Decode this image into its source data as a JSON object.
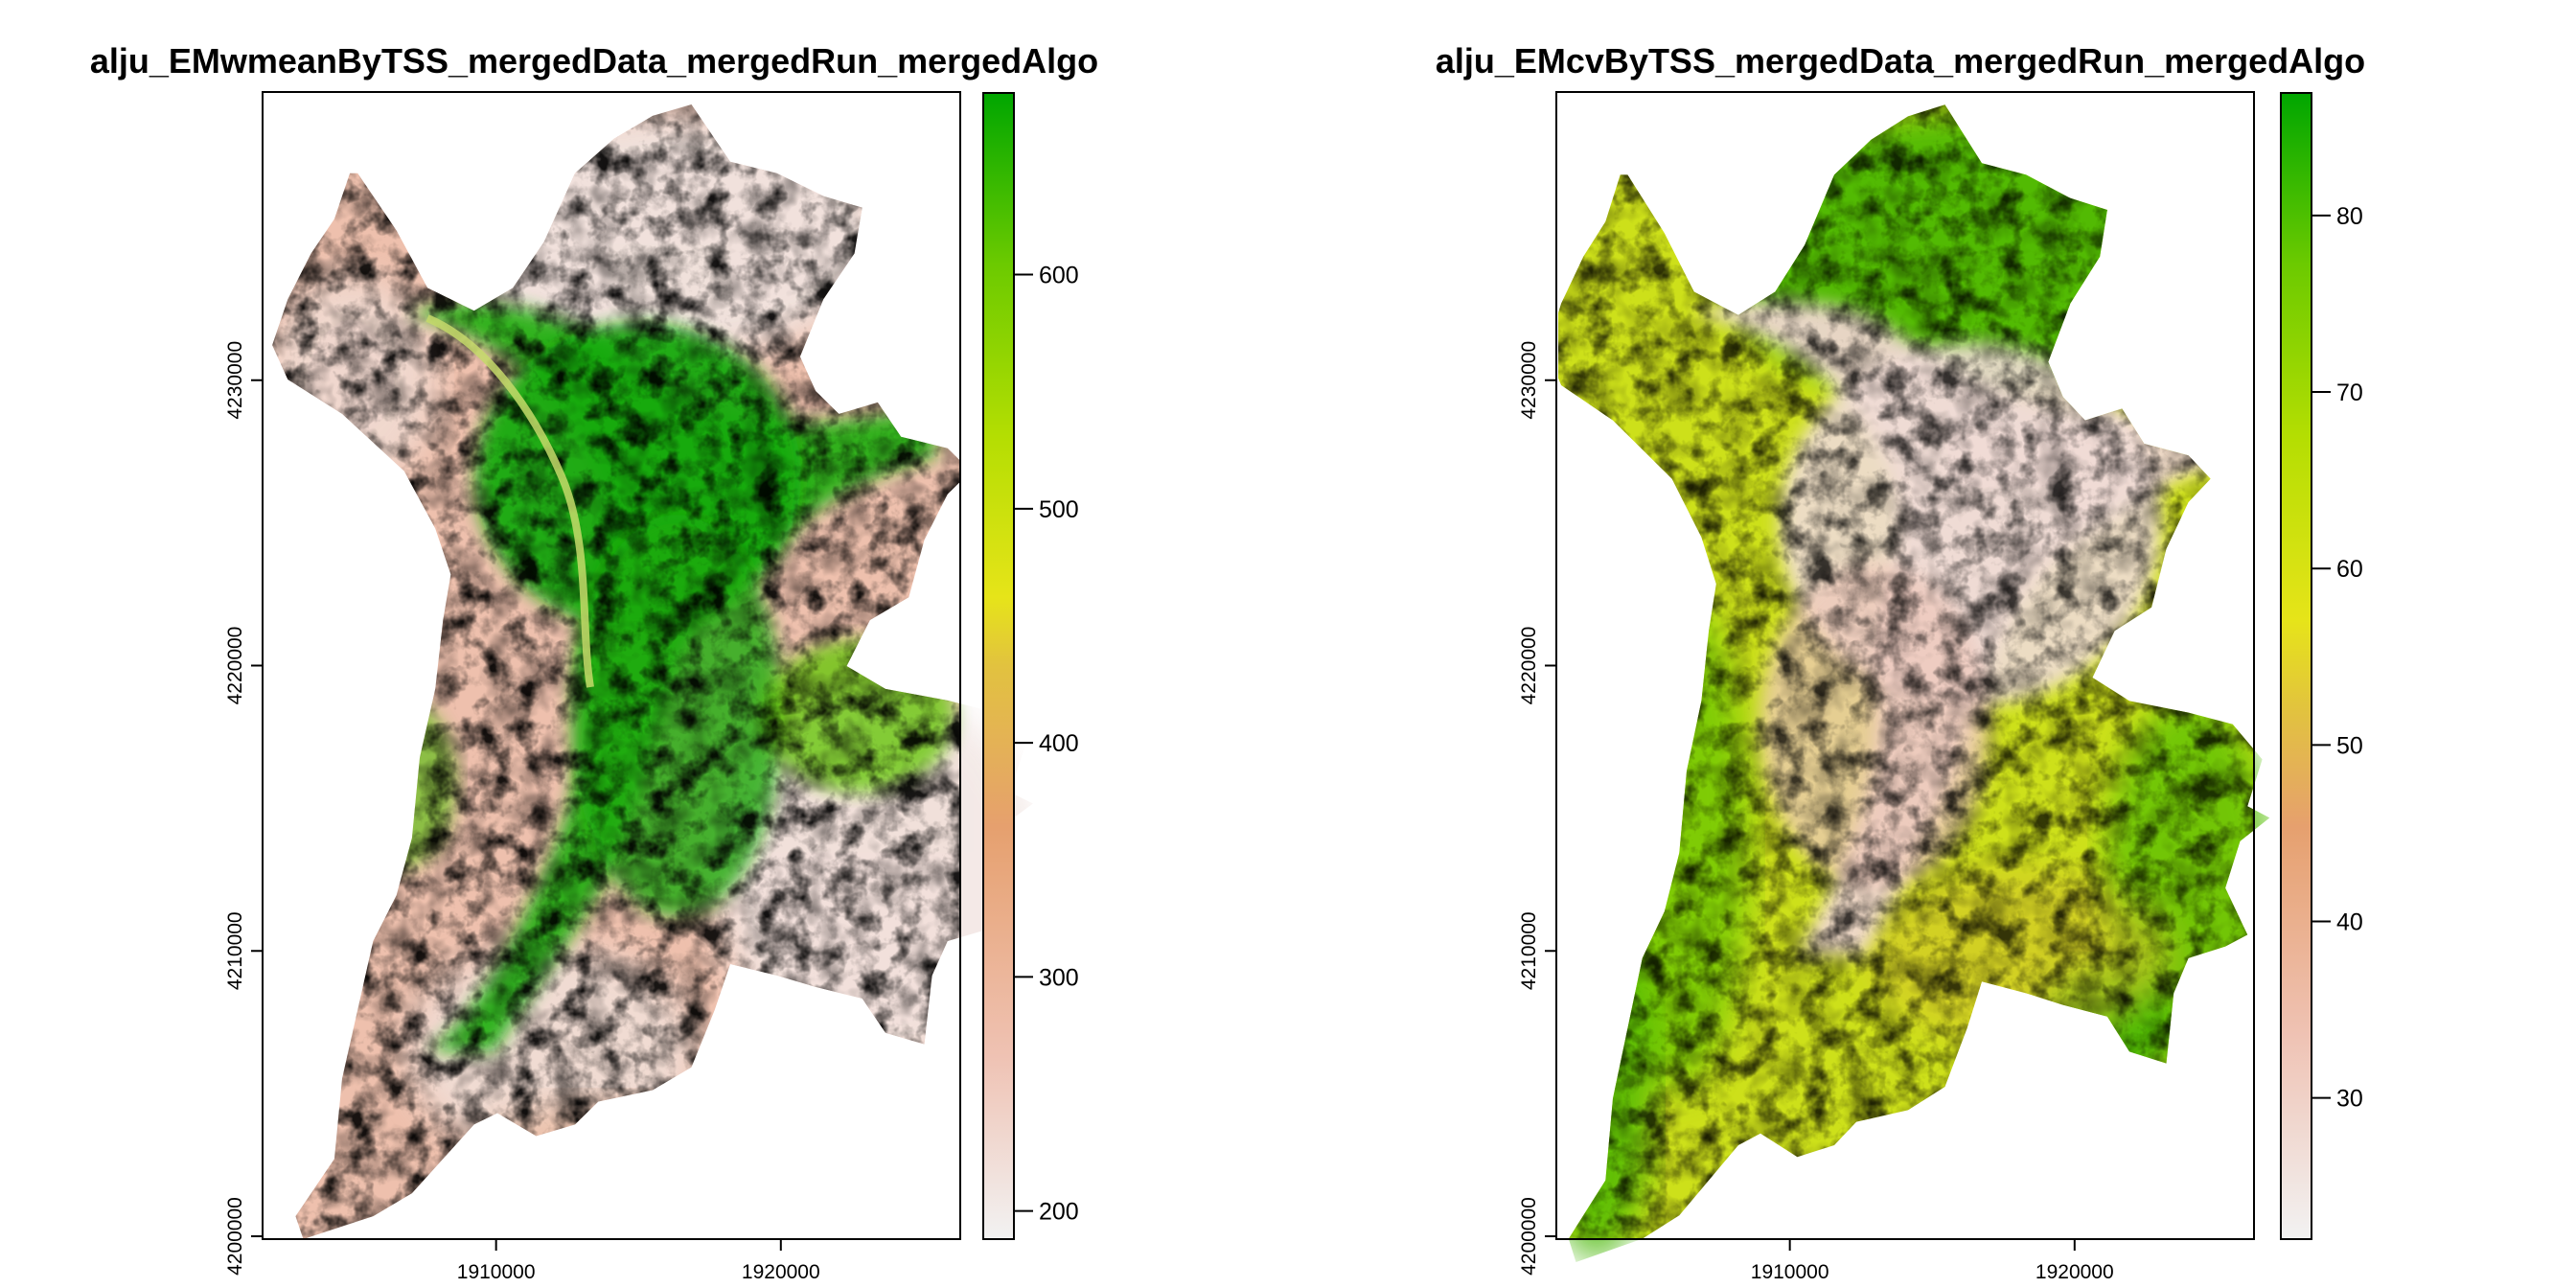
{
  "chart_data": [
    {
      "type": "heatmap",
      "title": "alju_EMwmeanByTSS_mergedData_mergedRun_mergedAlgo",
      "xlabel": "",
      "ylabel": "",
      "x_ticks": [
        1910000,
        1920000
      ],
      "x_tick_labels": [
        "1910000",
        "1920000"
      ],
      "y_ticks": [
        4200000,
        4210000,
        4220000,
        4230000
      ],
      "y_tick_labels": [
        "4200000",
        "4210000",
        "4220000",
        "4230000"
      ],
      "xlim": [
        1901800,
        1926300
      ],
      "ylim": [
        4199900,
        4240100
      ],
      "legend": {
        "position": "right",
        "range": [
          188,
          678
        ],
        "ticks": [
          200,
          300,
          400,
          500,
          600
        ],
        "tick_labels": [
          "200",
          "300",
          "400",
          "500",
          "600"
        ],
        "colors": [
          "#f2f2f2",
          "#efc2b3",
          "#e6a06e",
          "#e2c23f",
          "#e6e419",
          "#b4de02",
          "#6cca00",
          "#00a600"
        ]
      },
      "grid": false
    },
    {
      "type": "heatmap",
      "title": "alju_EMcvByTSS_mergedData_mergedRun_mergedAlgo",
      "xlabel": "",
      "ylabel": "",
      "x_ticks": [
        1910000,
        1920000
      ],
      "x_tick_labels": [
        "1910000",
        "1920000"
      ],
      "y_ticks": [
        4200000,
        4210000,
        4220000,
        4230000
      ],
      "y_tick_labels": [
        "4200000",
        "4210000",
        "4220000",
        "4230000"
      ],
      "xlim": [
        1901800,
        1926300
      ],
      "ylim": [
        4199900,
        4240100
      ],
      "legend": {
        "position": "right",
        "range": [
          22,
          87
        ],
        "ticks": [
          30,
          40,
          50,
          60,
          70,
          80
        ],
        "tick_labels": [
          "30",
          "40",
          "50",
          "60",
          "70",
          "80"
        ],
        "colors": [
          "#f2f2f2",
          "#efc2b3",
          "#e6a06e",
          "#e2c23f",
          "#e6e419",
          "#b4de02",
          "#6cca00",
          "#00a600"
        ]
      },
      "grid": false
    }
  ]
}
